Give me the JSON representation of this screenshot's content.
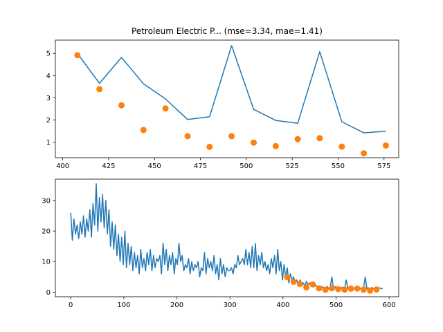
{
  "chart_data": [
    {
      "type": "line",
      "title": "Petroleum Electric P... (mse=3.34, mae=1.41)",
      "xlim": [
        396,
        583
      ],
      "ylim": [
        0.3,
        5.6
      ],
      "xticks": [
        400,
        425,
        450,
        475,
        500,
        525,
        550,
        575
      ],
      "yticks": [
        1,
        2,
        3,
        4,
        5
      ],
      "series": [
        {
          "style": "line",
          "color": "#1f77b4",
          "x": [
            408,
            420,
            432,
            444,
            456,
            468,
            480,
            492,
            504,
            516,
            528,
            540,
            552,
            564,
            576
          ],
          "y": [
            5.0,
            3.65,
            4.82,
            3.63,
            2.95,
            2.02,
            2.15,
            5.35,
            2.48,
            1.98,
            1.85,
            5.08,
            1.92,
            1.42,
            1.49
          ]
        },
        {
          "style": "scatter",
          "color": "#ff7f0e",
          "x": [
            408,
            420,
            432,
            444,
            456,
            468,
            480,
            492,
            504,
            516,
            528,
            540,
            552,
            564,
            576
          ],
          "y": [
            4.92,
            3.39,
            2.66,
            1.55,
            2.52,
            1.27,
            0.79,
            1.27,
            0.98,
            0.82,
            1.14,
            1.18,
            0.8,
            0.5,
            0.85
          ]
        }
      ]
    },
    {
      "type": "line",
      "title": "",
      "xlim": [
        -29,
        618
      ],
      "ylim": [
        -1.5,
        37
      ],
      "xticks": [
        0,
        100,
        200,
        300,
        400,
        500,
        600
      ],
      "yticks": [
        0,
        10,
        20,
        30
      ],
      "series": [
        {
          "style": "line",
          "color": "#1f77b4",
          "x": [
            0,
            3,
            6,
            9,
            12,
            15,
            18,
            21,
            24,
            27,
            30,
            33,
            36,
            39,
            42,
            45,
            48,
            51,
            54,
            57,
            60,
            63,
            66,
            69,
            72,
            75,
            78,
            81,
            84,
            87,
            90,
            93,
            96,
            99,
            102,
            105,
            108,
            111,
            114,
            117,
            120,
            123,
            126,
            129,
            132,
            135,
            138,
            141,
            144,
            147,
            150,
            153,
            156,
            159,
            162,
            165,
            168,
            171,
            174,
            177,
            180,
            183,
            186,
            189,
            192,
            195,
            198,
            201,
            204,
            207,
            210,
            213,
            216,
            219,
            222,
            225,
            228,
            231,
            234,
            237,
            240,
            243,
            246,
            249,
            252,
            255,
            258,
            261,
            264,
            267,
            270,
            273,
            276,
            279,
            282,
            285,
            288,
            291,
            294,
            297,
            300,
            303,
            306,
            309,
            312,
            315,
            318,
            321,
            324,
            327,
            330,
            333,
            336,
            339,
            342,
            345,
            348,
            351,
            354,
            357,
            360,
            363,
            366,
            369,
            372,
            375,
            378,
            381,
            384,
            387,
            390,
            393,
            396,
            399,
            402,
            405,
            408,
            411,
            414,
            417,
            420,
            423,
            426,
            429,
            432,
            435,
            438,
            441,
            444,
            447,
            450,
            453,
            456,
            459,
            462,
            465,
            468,
            471,
            474,
            477,
            480,
            483,
            486,
            489,
            492,
            495,
            498,
            501,
            504,
            507,
            510,
            513,
            516,
            519,
            522,
            525,
            528,
            531,
            534,
            537,
            540,
            543,
            546,
            549,
            552,
            555,
            558,
            561,
            564,
            567,
            570,
            573,
            576,
            579,
            582,
            585,
            588
          ],
          "y": [
            26,
            17,
            24,
            19,
            22,
            17.5,
            23,
            19,
            25,
            18,
            24,
            20,
            27,
            18,
            29,
            22,
            35.5,
            20,
            31,
            23,
            32,
            21,
            30,
            19,
            27,
            15,
            23,
            14,
            22,
            12,
            19,
            10,
            18,
            9,
            20,
            8,
            16,
            9,
            15,
            7,
            13,
            8,
            12,
            6,
            14,
            8,
            11,
            7,
            13,
            9,
            14,
            7,
            12,
            8,
            11,
            10,
            12,
            6,
            16,
            9,
            14,
            7,
            12,
            9,
            13,
            6,
            11,
            9,
            16,
            10,
            12,
            7,
            9,
            8,
            11,
            6,
            10,
            7,
            9,
            8,
            10,
            5,
            8,
            7,
            13,
            6,
            11,
            8,
            10,
            7,
            12,
            6,
            9,
            4,
            11,
            6,
            9,
            5,
            8,
            7,
            7,
            8,
            6,
            9,
            8,
            12,
            9,
            10,
            11,
            9,
            14,
            9,
            13,
            8,
            15,
            8,
            16,
            7,
            12,
            9,
            13,
            8,
            10,
            7,
            9,
            6,
            11,
            8,
            12,
            6,
            14,
            7,
            10,
            4,
            9,
            5,
            8,
            3,
            6,
            4,
            5,
            3,
            4,
            2,
            4,
            3,
            3,
            2,
            3.5,
            2.5,
            3,
            2,
            2.5,
            1.8,
            2.2,
            1.5,
            2,
            1.5,
            1.8,
            1.2,
            1.5,
            1.8,
            1.2,
            1.6,
            5,
            1.3,
            1.8,
            1.2,
            1.5,
            1,
            1.4,
            1.6,
            1.2,
            4,
            1.3,
            1.1,
            1.5,
            1.6,
            1.2,
            1.4,
            1.1,
            1.8,
            1.2,
            1.1,
            1.6,
            5,
            1.2,
            1.4,
            1.1,
            1.5,
            1.2,
            1.3,
            1.6,
            1.2,
            1.4,
            1.1,
            1.3
          ]
        },
        {
          "style": "scatter",
          "color": "#ff7f0e",
          "x": [
            408,
            420,
            432,
            444,
            456,
            468,
            480,
            492,
            504,
            516,
            528,
            540,
            552,
            564,
            576
          ],
          "y": [
            4.92,
            3.39,
            2.66,
            1.55,
            2.52,
            1.27,
            0.79,
            1.27,
            0.98,
            0.82,
            1.14,
            1.18,
            0.8,
            0.5,
            0.85
          ]
        }
      ]
    }
  ]
}
